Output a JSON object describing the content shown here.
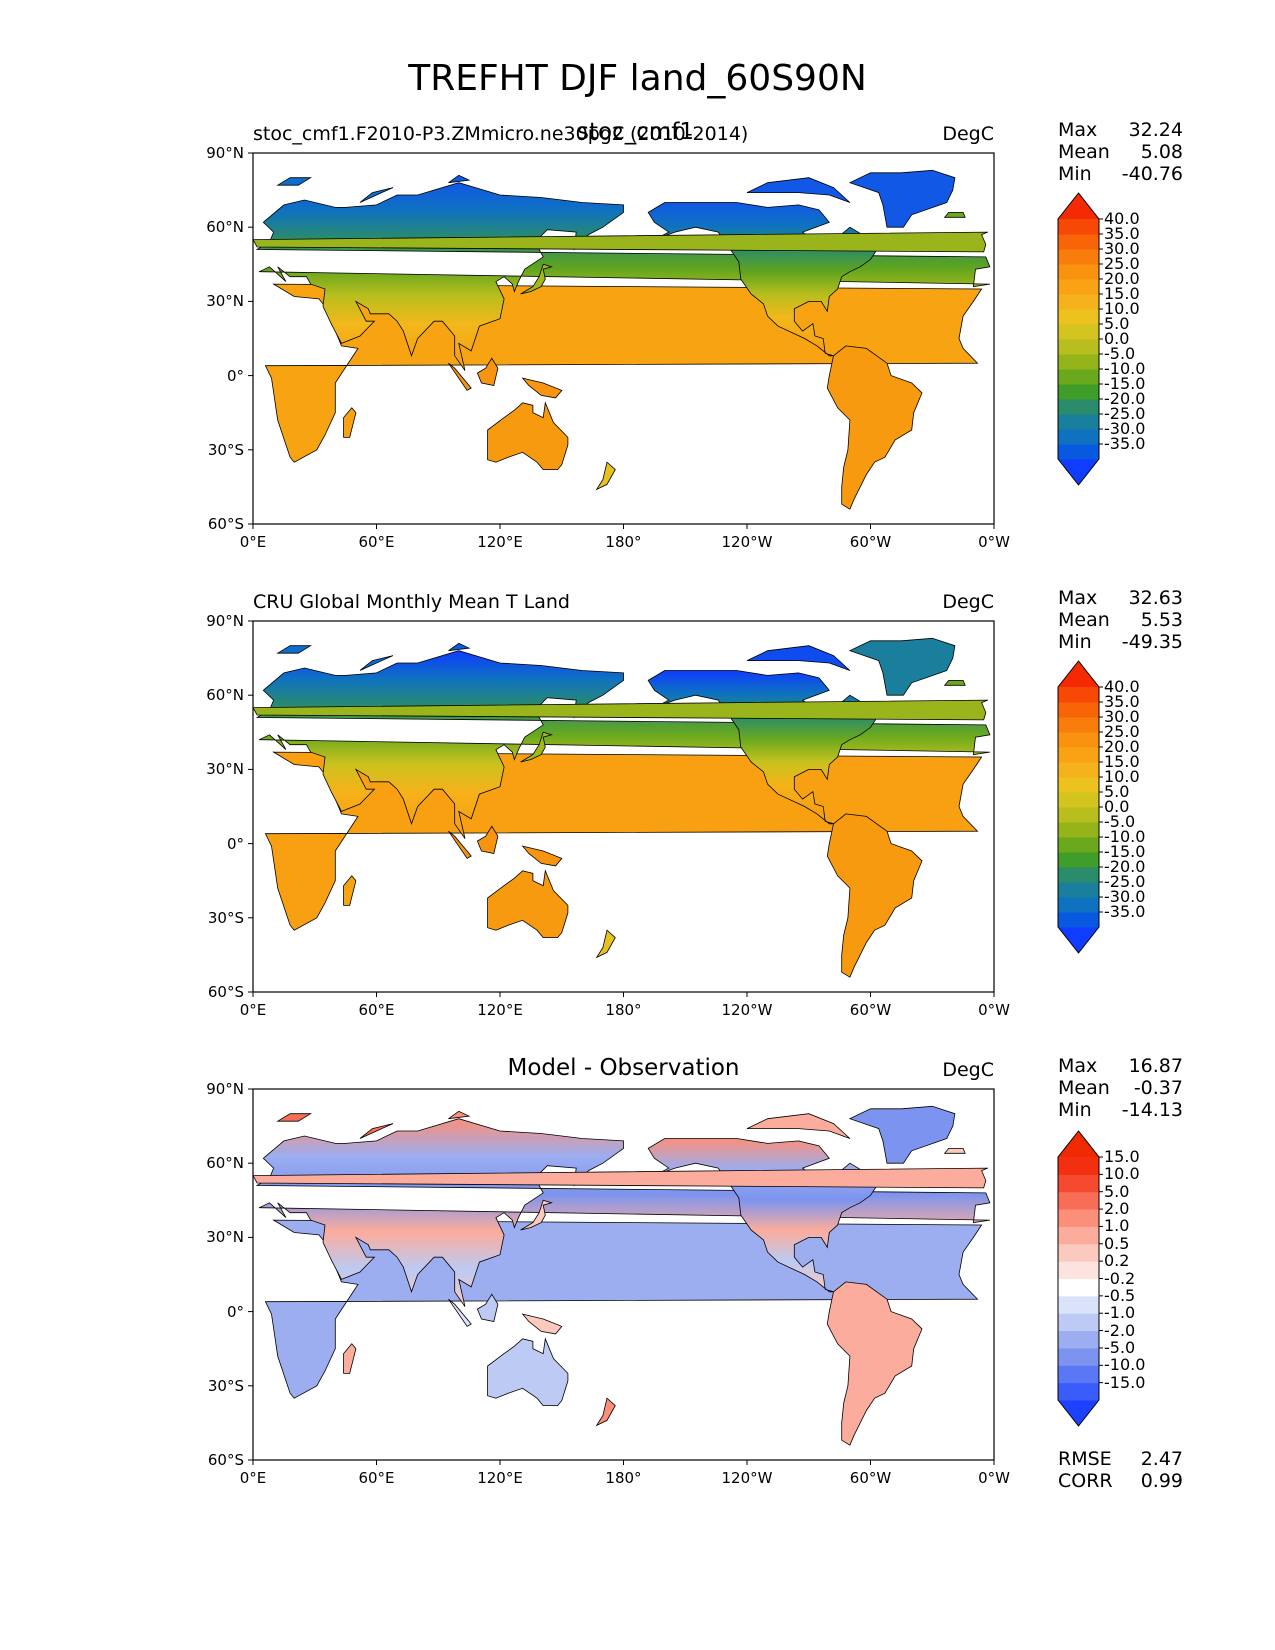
{
  "title": "TREFHT DJF land_60S90N",
  "panels": [
    {
      "id": "model",
      "left_title": "stoc_cmf1.F2010-P3.ZMmicro.ne30pg2 (2010-2014)",
      "center_title": "stoc_cmf1",
      "units": "DegC",
      "stats": [
        {
          "label": "Max",
          "value": "32.24"
        },
        {
          "label": "Mean",
          "value": "5.08"
        },
        {
          "label": "Min",
          "value": "-40.76"
        }
      ],
      "colorbar": {
        "ticks": [
          "40.0",
          "35.0",
          "30.0",
          "25.0",
          "20.0",
          "15.0",
          "10.0",
          "5.0",
          "0.0",
          "-5.0",
          "-10.0",
          "-15.0",
          "-20.0",
          "-25.0",
          "-30.0",
          "-35.0"
        ],
        "colors": [
          "#0f3cff",
          "#0759e0",
          "#0e72c0",
          "#1a7f9c",
          "#2a8c6a",
          "#3f9e2a",
          "#6aa91e",
          "#94b41a",
          "#b8be1d",
          "#d4c420",
          "#ecc21f",
          "#f6b21a",
          "#f8a214",
          "#f9920f",
          "#f97d0b",
          "#f86407",
          "#f74805",
          "#f52a02"
        ]
      }
    },
    {
      "id": "obs",
      "left_title": "CRU Global Monthly Mean T Land",
      "center_title": "",
      "units": "DegC",
      "stats": [
        {
          "label": "Max",
          "value": "32.63"
        },
        {
          "label": "Mean",
          "value": "5.53"
        },
        {
          "label": "Min",
          "value": "-49.35"
        }
      ],
      "colorbar": {
        "ticks": [
          "40.0",
          "35.0",
          "30.0",
          "25.0",
          "20.0",
          "15.0",
          "10.0",
          "5.0",
          "0.0",
          "-5.0",
          "-10.0",
          "-15.0",
          "-20.0",
          "-25.0",
          "-30.0",
          "-35.0"
        ],
        "colors": [
          "#0f3cff",
          "#0759e0",
          "#0e72c0",
          "#1a7f9c",
          "#2a8c6a",
          "#3f9e2a",
          "#6aa91e",
          "#94b41a",
          "#b8be1d",
          "#d4c420",
          "#ecc21f",
          "#f6b21a",
          "#f8a214",
          "#f9920f",
          "#f97d0b",
          "#f86407",
          "#f74805",
          "#f52a02"
        ]
      }
    },
    {
      "id": "diff",
      "left_title": "",
      "center_title": "Model - Observation",
      "units": "DegC",
      "stats": [
        {
          "label": "Max",
          "value": "16.87"
        },
        {
          "label": "Mean",
          "value": "-0.37"
        },
        {
          "label": "Min",
          "value": "-14.13"
        }
      ],
      "colorbar": {
        "ticks": [
          "15.0",
          "10.0",
          "5.0",
          "2.0",
          "1.0",
          "0.5",
          "0.2",
          "-0.2",
          "-0.5",
          "-1.0",
          "-2.0",
          "-5.0",
          "-10.0",
          "-15.0"
        ],
        "colors": [
          "#1e40ff",
          "#3a5cfb",
          "#5a78f5",
          "#7c94ef",
          "#9cadf0",
          "#bccaf4",
          "#dbe3fb",
          "#ffffff",
          "#fde3de",
          "#fcc9bf",
          "#fcac9c",
          "#fb8f7a",
          "#f86d55",
          "#f54a30",
          "#f23010",
          "#f02a00"
        ]
      },
      "metrics": [
        {
          "label": "RMSE",
          "value": "2.47"
        },
        {
          "label": "CORR",
          "value": "0.99"
        }
      ]
    }
  ],
  "lat_ticks": [
    "90°N",
    "60°N",
    "30°N",
    "0°",
    "30°S",
    "60°S"
  ],
  "lon_ticks": [
    "0°E",
    "60°E",
    "120°E",
    "180°",
    "120°W",
    "60°W",
    "0°W"
  ],
  "colors": {
    "ocean": "#ffffff",
    "coast": "#000000"
  }
}
